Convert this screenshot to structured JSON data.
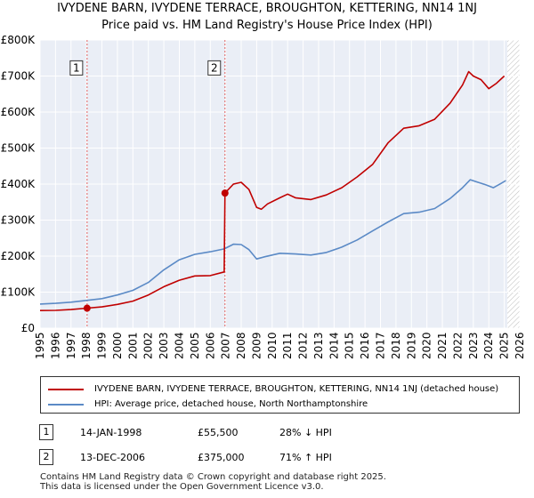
{
  "title_line1": "IVYDENE BARN, IVYDENE TERRACE, BROUGHTON, KETTERING, NN14 1NJ",
  "title_line2": "Price paid vs. HM Land Registry's House Price Index (HPI)",
  "chart_data": {
    "type": "line",
    "title": "IVYDENE BARN, IVYDENE TERRACE, BROUGHTON, KETTERING, NN14 1NJ — Price paid vs. HM Land Registry's House Price Index (HPI)",
    "xlabel": "",
    "ylabel": "",
    "xlim": [
      1995,
      2026
    ],
    "ylim": [
      0,
      800000
    ],
    "y_ticks": [
      {
        "value": 0,
        "label": "£0"
      },
      {
        "value": 100000,
        "label": "£100K"
      },
      {
        "value": 200000,
        "label": "£200K"
      },
      {
        "value": 300000,
        "label": "£300K"
      },
      {
        "value": 400000,
        "label": "£400K"
      },
      {
        "value": 500000,
        "label": "£500K"
      },
      {
        "value": 600000,
        "label": "£600K"
      },
      {
        "value": 700000,
        "label": "£700K"
      },
      {
        "value": 800000,
        "label": "£800K"
      }
    ],
    "x_ticks": [
      "1995",
      "1996",
      "1997",
      "1998",
      "1999",
      "2000",
      "2001",
      "2002",
      "2003",
      "2004",
      "2005",
      "2006",
      "2007",
      "2008",
      "2009",
      "2010",
      "2011",
      "2012",
      "2013",
      "2014",
      "2015",
      "2016",
      "2017",
      "2018",
      "2019",
      "2020",
      "2021",
      "2022",
      "2023",
      "2024",
      "2025",
      "2026"
    ],
    "grid": true,
    "shaded_regions": [
      {
        "from": 2025.2,
        "to": 2026,
        "style": "hatched"
      }
    ],
    "series": [
      {
        "name": "IVYDENE BARN, IVYDENE TERRACE, BROUGHTON, KETTERING, NN14 1NJ (detached house)",
        "color": "#c00000",
        "points": [
          [
            1995.0,
            49000
          ],
          [
            1996.0,
            49500
          ],
          [
            1997.0,
            51500
          ],
          [
            1998.04,
            55500
          ],
          [
            1999.0,
            59000
          ],
          [
            2000.0,
            66000
          ],
          [
            2001.0,
            75000
          ],
          [
            2002.0,
            92000
          ],
          [
            2003.0,
            115000
          ],
          [
            2004.0,
            133000
          ],
          [
            2005.0,
            145000
          ],
          [
            2006.0,
            146000
          ],
          [
            2006.9,
            156000
          ],
          [
            2006.95,
            375000
          ],
          [
            2007.5,
            400000
          ],
          [
            2008.0,
            405000
          ],
          [
            2008.5,
            385000
          ],
          [
            2009.0,
            335000
          ],
          [
            2009.3,
            330000
          ],
          [
            2009.7,
            345000
          ],
          [
            2010.5,
            362000
          ],
          [
            2011.0,
            372000
          ],
          [
            2011.5,
            362000
          ],
          [
            2012.5,
            357000
          ],
          [
            2013.5,
            370000
          ],
          [
            2014.5,
            390000
          ],
          [
            2015.5,
            420000
          ],
          [
            2016.5,
            455000
          ],
          [
            2017.5,
            515000
          ],
          [
            2018.5,
            555000
          ],
          [
            2019.5,
            562000
          ],
          [
            2020.5,
            580000
          ],
          [
            2021.5,
            625000
          ],
          [
            2022.3,
            675000
          ],
          [
            2022.7,
            712000
          ],
          [
            2023.0,
            700000
          ],
          [
            2023.5,
            690000
          ],
          [
            2024.0,
            665000
          ],
          [
            2024.5,
            680000
          ],
          [
            2025.0,
            700000
          ]
        ]
      },
      {
        "name": "HPI: Average price, detached house, North Northamptonshire",
        "color": "#5b8ac6",
        "points": [
          [
            1995.0,
            67000
          ],
          [
            1996.0,
            69000
          ],
          [
            1997.0,
            72000
          ],
          [
            1998.0,
            77000
          ],
          [
            1999.0,
            82000
          ],
          [
            2000.0,
            92000
          ],
          [
            2001.0,
            105000
          ],
          [
            2002.0,
            127000
          ],
          [
            2003.0,
            162000
          ],
          [
            2004.0,
            190000
          ],
          [
            2005.0,
            205000
          ],
          [
            2006.0,
            212000
          ],
          [
            2006.9,
            220000
          ],
          [
            2007.5,
            233000
          ],
          [
            2008.0,
            232000
          ],
          [
            2008.5,
            218000
          ],
          [
            2009.0,
            192000
          ],
          [
            2009.5,
            198000
          ],
          [
            2010.5,
            208000
          ],
          [
            2011.5,
            206000
          ],
          [
            2012.5,
            203000
          ],
          [
            2013.5,
            210000
          ],
          [
            2014.5,
            225000
          ],
          [
            2015.5,
            245000
          ],
          [
            2016.5,
            270000
          ],
          [
            2017.5,
            295000
          ],
          [
            2018.5,
            318000
          ],
          [
            2019.5,
            322000
          ],
          [
            2020.5,
            332000
          ],
          [
            2021.5,
            360000
          ],
          [
            2022.3,
            390000
          ],
          [
            2022.8,
            412000
          ],
          [
            2023.3,
            405000
          ],
          [
            2023.8,
            398000
          ],
          [
            2024.3,
            390000
          ],
          [
            2024.8,
            402000
          ],
          [
            2025.1,
            410000
          ]
        ]
      }
    ],
    "markers": [
      {
        "label": "1",
        "x": 1998.04,
        "y": 55500,
        "box_value": 720000
      },
      {
        "label": "2",
        "x": 2006.95,
        "y": 375000,
        "box_value": 720000
      }
    ]
  },
  "legend": {
    "items": [
      {
        "label": "IVYDENE BARN, IVYDENE TERRACE, BROUGHTON, KETTERING, NN14 1NJ (detached house)",
        "color": "#c00000"
      },
      {
        "label": "HPI: Average price, detached house, North Northamptonshire",
        "color": "#5b8ac6"
      }
    ]
  },
  "transactions": [
    {
      "num": "1",
      "date": "14-JAN-1998",
      "price": "£55,500",
      "hpi": "28% ↓ HPI"
    },
    {
      "num": "2",
      "date": "13-DEC-2006",
      "price": "£375,000",
      "hpi": "71% ↑ HPI"
    }
  ],
  "footer": {
    "line1": "Contains HM Land Registry data © Crown copyright and database right 2025.",
    "line2": "This data is licensed under the Open Government Licence v3.0."
  }
}
